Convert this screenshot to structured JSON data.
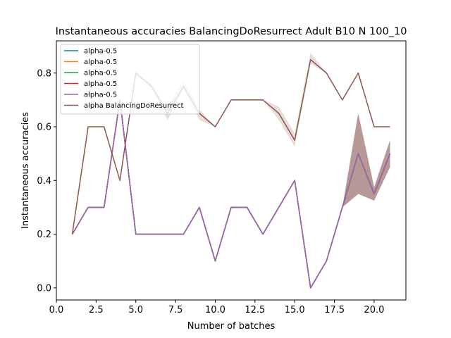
{
  "chart_data": {
    "type": "line",
    "title": "Instantaneous accuracies BalancingDoResurrect Adult B10 N 100_10",
    "xlabel": "Number of batches",
    "ylabel": "Instantaneous accuracies",
    "xlim": [
      0,
      22.0
    ],
    "ylim": [
      -0.045,
      0.92
    ],
    "xticks": [
      0,
      2.5,
      5,
      7.5,
      10,
      12.5,
      15,
      17.5,
      20
    ],
    "xtick_labels": [
      "0.0",
      "2.5",
      "5.0",
      "7.5",
      "10.0",
      "12.5",
      "15.0",
      "17.5",
      "20.0"
    ],
    "yticks": [
      0,
      0.2,
      0.4,
      0.6,
      0.8
    ],
    "ytick_labels": [
      "0.0",
      "0.2",
      "0.4",
      "0.6",
      "0.8"
    ],
    "grid": false,
    "legend_position": "top-left",
    "x": [
      1,
      2,
      3,
      4,
      5,
      6,
      7,
      8,
      9,
      10,
      11,
      12,
      13,
      14,
      15,
      16,
      17,
      18,
      19,
      20,
      21
    ],
    "series": [
      {
        "name": "alpha-0.5",
        "color": "#1f77b4",
        "values": [
          0.2,
          0.3,
          0.3,
          0.7,
          0.2,
          0.2,
          0.2,
          0.2,
          0.3,
          0.1,
          0.3,
          0.3,
          0.2,
          0.3,
          0.4,
          0.0,
          0.1,
          0.3,
          0.5,
          0.35,
          0.5
        ],
        "band_low": [
          0.2,
          0.3,
          0.3,
          0.7,
          0.2,
          0.2,
          0.2,
          0.2,
          0.3,
          0.1,
          0.3,
          0.3,
          0.2,
          0.3,
          0.4,
          0.0,
          0.1,
          0.3,
          0.35,
          0.325,
          0.45
        ],
        "band_high": [
          0.2,
          0.3,
          0.3,
          0.7,
          0.2,
          0.2,
          0.2,
          0.2,
          0.3,
          0.1,
          0.3,
          0.3,
          0.2,
          0.3,
          0.4,
          0.0,
          0.1,
          0.3,
          0.65,
          0.375,
          0.55
        ]
      },
      {
        "name": "alpha-0.5",
        "color": "#ff7f0e",
        "values": [
          0.2,
          0.3,
          0.3,
          0.7,
          0.2,
          0.2,
          0.2,
          0.2,
          0.3,
          0.1,
          0.3,
          0.3,
          0.2,
          0.3,
          0.4,
          0.0,
          0.1,
          0.3,
          0.5,
          0.35,
          0.5
        ],
        "band_low": [
          0.2,
          0.3,
          0.3,
          0.7,
          0.2,
          0.2,
          0.2,
          0.2,
          0.3,
          0.1,
          0.3,
          0.3,
          0.2,
          0.3,
          0.4,
          0.0,
          0.1,
          0.3,
          0.35,
          0.325,
          0.45
        ],
        "band_high": [
          0.2,
          0.3,
          0.3,
          0.7,
          0.2,
          0.2,
          0.2,
          0.2,
          0.3,
          0.1,
          0.3,
          0.3,
          0.2,
          0.3,
          0.4,
          0.0,
          0.1,
          0.3,
          0.65,
          0.375,
          0.55
        ]
      },
      {
        "name": "alpha-0.5",
        "color": "#2ca02c",
        "values": [
          0.2,
          0.3,
          0.3,
          0.7,
          0.2,
          0.2,
          0.2,
          0.2,
          0.3,
          0.1,
          0.3,
          0.3,
          0.2,
          0.3,
          0.4,
          0.0,
          0.1,
          0.3,
          0.5,
          0.35,
          0.5
        ],
        "band_low": [
          0.2,
          0.3,
          0.3,
          0.7,
          0.2,
          0.2,
          0.2,
          0.2,
          0.3,
          0.1,
          0.3,
          0.3,
          0.2,
          0.3,
          0.4,
          0.0,
          0.1,
          0.3,
          0.35,
          0.325,
          0.45
        ],
        "band_high": [
          0.2,
          0.3,
          0.3,
          0.7,
          0.2,
          0.2,
          0.2,
          0.2,
          0.3,
          0.1,
          0.3,
          0.3,
          0.2,
          0.3,
          0.4,
          0.0,
          0.1,
          0.3,
          0.65,
          0.375,
          0.55
        ]
      },
      {
        "name": "alpha-0.5",
        "color": "#d62728",
        "values": [
          0.2,
          0.3,
          0.3,
          0.7,
          0.2,
          0.2,
          0.2,
          0.2,
          0.3,
          0.1,
          0.3,
          0.3,
          0.2,
          0.3,
          0.4,
          0.0,
          0.1,
          0.3,
          0.5,
          0.35,
          0.5
        ],
        "band_low": [
          0.2,
          0.3,
          0.3,
          0.7,
          0.2,
          0.2,
          0.2,
          0.2,
          0.3,
          0.1,
          0.3,
          0.3,
          0.2,
          0.3,
          0.4,
          0.0,
          0.1,
          0.3,
          0.35,
          0.325,
          0.45
        ],
        "band_high": [
          0.2,
          0.3,
          0.3,
          0.7,
          0.2,
          0.2,
          0.2,
          0.2,
          0.3,
          0.1,
          0.3,
          0.3,
          0.2,
          0.3,
          0.4,
          0.0,
          0.1,
          0.3,
          0.65,
          0.375,
          0.55
        ]
      },
      {
        "name": "alpha-0.5",
        "color": "#9467bd",
        "values": [
          0.2,
          0.3,
          0.3,
          0.7,
          0.2,
          0.2,
          0.2,
          0.2,
          0.3,
          0.1,
          0.3,
          0.3,
          0.2,
          0.3,
          0.4,
          0.0,
          0.1,
          0.3,
          0.5,
          0.35,
          0.5
        ],
        "band_low": [
          0.2,
          0.3,
          0.3,
          0.7,
          0.2,
          0.2,
          0.2,
          0.2,
          0.3,
          0.1,
          0.3,
          0.3,
          0.2,
          0.3,
          0.4,
          0.0,
          0.1,
          0.3,
          0.35,
          0.325,
          0.45
        ],
        "band_high": [
          0.2,
          0.3,
          0.3,
          0.7,
          0.2,
          0.2,
          0.2,
          0.2,
          0.3,
          0.1,
          0.3,
          0.3,
          0.2,
          0.3,
          0.4,
          0.0,
          0.1,
          0.3,
          0.65,
          0.375,
          0.55
        ]
      },
      {
        "name": "alpha BalancingDoResurrect",
        "color": "#8c564b",
        "values": [
          0.2,
          0.6,
          0.6,
          0.4,
          0.8,
          0.75,
          0.65,
          0.75,
          0.65,
          0.6,
          0.7,
          0.7,
          0.7,
          0.65,
          0.55,
          0.85,
          0.8,
          0.7,
          0.8,
          0.6,
          0.6
        ],
        "band_low": [
          0.2,
          0.6,
          0.6,
          0.4,
          0.8,
          0.74,
          0.625,
          0.74,
          0.625,
          0.6,
          0.7,
          0.7,
          0.7,
          0.625,
          0.525,
          0.835,
          0.8,
          0.7,
          0.8,
          0.6,
          0.6
        ],
        "band_high": [
          0.2,
          0.6,
          0.6,
          0.4,
          0.8,
          0.76,
          0.675,
          0.775,
          0.665,
          0.6,
          0.7,
          0.7,
          0.7,
          0.675,
          0.575,
          0.875,
          0.8,
          0.7,
          0.8,
          0.6,
          0.6
        ]
      }
    ]
  }
}
